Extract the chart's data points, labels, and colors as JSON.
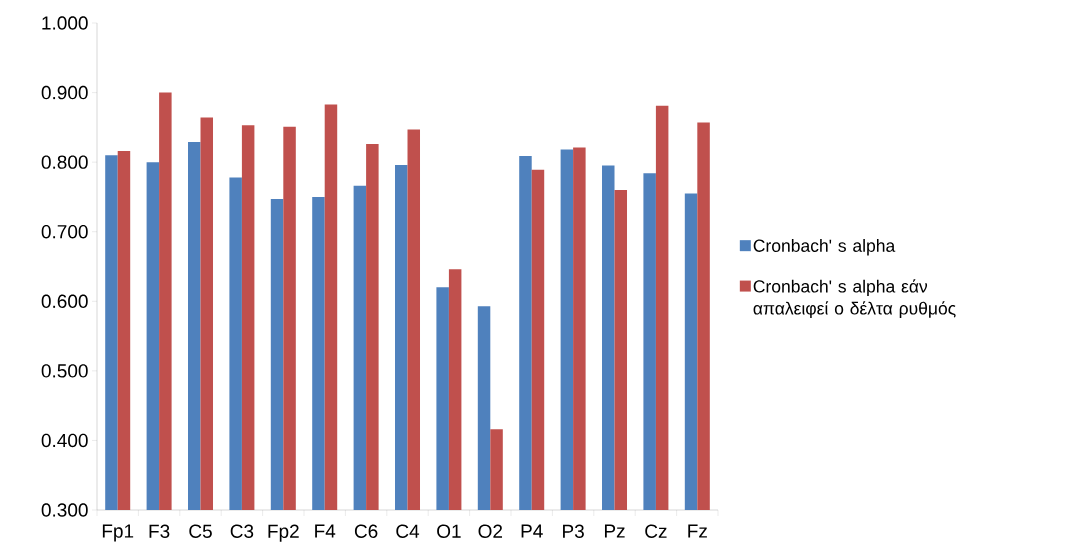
{
  "chart_data": {
    "type": "bar",
    "categories": [
      "Fp1",
      "F3",
      "C5",
      "C3",
      "Fp2",
      "F4",
      "C6",
      "C4",
      "O1",
      "O2",
      "P4",
      "P3",
      "Pz",
      "Cz",
      "Fz"
    ],
    "series": [
      {
        "name": "Cronbach' s alpha",
        "color": "#4f81bd",
        "values": [
          0.81,
          0.8,
          0.829,
          0.778,
          0.747,
          0.75,
          0.766,
          0.796,
          0.62,
          0.593,
          0.809,
          0.818,
          0.795,
          0.784,
          0.755
        ]
      },
      {
        "name": "Cronbach' s alpha εάν απαλειφεί ο δέλτα ρυθμός",
        "color": "#c0504d",
        "values": [
          0.816,
          0.9,
          0.864,
          0.853,
          0.851,
          0.883,
          0.826,
          0.847,
          0.646,
          0.416,
          0.789,
          0.821,
          0.76,
          0.881,
          0.857
        ]
      }
    ],
    "ylim": [
      0.3,
      1.0
    ],
    "yticks": [
      {
        "value": 0.3,
        "label": "0.300"
      },
      {
        "value": 0.4,
        "label": "0.400"
      },
      {
        "value": 0.5,
        "label": "0.500"
      },
      {
        "value": 0.6,
        "label": "0.600"
      },
      {
        "value": 0.7,
        "label": "0.700"
      },
      {
        "value": 0.8,
        "label": "0.800"
      },
      {
        "value": 0.9,
        "label": "0.900"
      },
      {
        "value": 1.0,
        "label": "1.000"
      }
    ],
    "legend": "right"
  }
}
